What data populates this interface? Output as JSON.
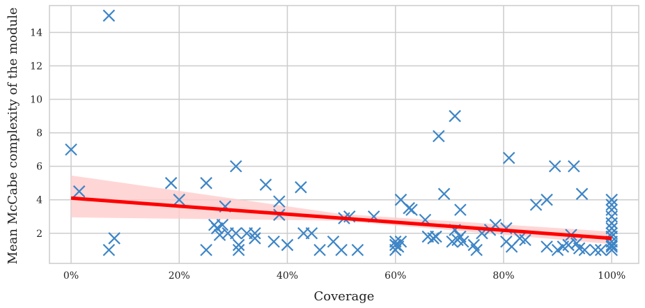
{
  "chart_data": {
    "type": "scatter",
    "xlabel": "Coverage",
    "ylabel": "Mean McCabe complexity of the module",
    "xlim": [
      -4,
      105
    ],
    "ylim": [
      0.2,
      15.6
    ],
    "x_ticks": [
      0,
      20,
      40,
      60,
      80,
      100
    ],
    "x_tick_labels": [
      "0%",
      "20%",
      "40%",
      "60%",
      "80%",
      "100%"
    ],
    "y_ticks": [
      2,
      4,
      6,
      8,
      10,
      12,
      14
    ],
    "y_tick_labels": [
      "2",
      "4",
      "6",
      "8",
      "10",
      "12",
      "14"
    ],
    "grid": true,
    "colors": {
      "points": "#3d85c6",
      "regression": "#ff0000",
      "confidence_band": "#ffcccc",
      "grid": "#cccccc",
      "frame": "#cccccc"
    },
    "marker": "x",
    "regression": {
      "x": [
        0,
        100
      ],
      "y": [
        4.1,
        1.7
      ]
    },
    "confidence_band": {
      "x": [
        0,
        50,
        100
      ],
      "lower": [
        2.95,
        2.75,
        1.35
      ],
      "upper": [
        5.45,
        3.15,
        2.1
      ]
    },
    "points": [
      {
        "x": 0,
        "y": 7
      },
      {
        "x": 1.5,
        "y": 4.5
      },
      {
        "x": 7,
        "y": 15
      },
      {
        "x": 7,
        "y": 1
      },
      {
        "x": 8,
        "y": 1.7
      },
      {
        "x": 18.5,
        "y": 5
      },
      {
        "x": 20,
        "y": 4
      },
      {
        "x": 25,
        "y": 5
      },
      {
        "x": 25,
        "y": 1
      },
      {
        "x": 26.5,
        "y": 2.5
      },
      {
        "x": 27,
        "y": 2.3
      },
      {
        "x": 27.5,
        "y": 1.9
      },
      {
        "x": 28,
        "y": 2.5
      },
      {
        "x": 28.5,
        "y": 3.6
      },
      {
        "x": 29,
        "y": 2
      },
      {
        "x": 30.5,
        "y": 6
      },
      {
        "x": 30.5,
        "y": 2
      },
      {
        "x": 31,
        "y": 1.3
      },
      {
        "x": 31,
        "y": 1
      },
      {
        "x": 32.5,
        "y": 2
      },
      {
        "x": 34,
        "y": 1.7
      },
      {
        "x": 34,
        "y": 2
      },
      {
        "x": 36,
        "y": 4.9
      },
      {
        "x": 37.5,
        "y": 1.5
      },
      {
        "x": 38.5,
        "y": 3.9
      },
      {
        "x": 38.5,
        "y": 3.1
      },
      {
        "x": 40,
        "y": 1.3
      },
      {
        "x": 42.5,
        "y": 4.75
      },
      {
        "x": 43,
        "y": 2
      },
      {
        "x": 44.5,
        "y": 2
      },
      {
        "x": 46,
        "y": 1
      },
      {
        "x": 48.5,
        "y": 1.5
      },
      {
        "x": 50,
        "y": 1
      },
      {
        "x": 50.5,
        "y": 2.9
      },
      {
        "x": 51.5,
        "y": 3
      },
      {
        "x": 53,
        "y": 1
      },
      {
        "x": 56,
        "y": 3
      },
      {
        "x": 60,
        "y": 1.5
      },
      {
        "x": 60,
        "y": 1.3
      },
      {
        "x": 60,
        "y": 1
      },
      {
        "x": 60.5,
        "y": 1.2
      },
      {
        "x": 61,
        "y": 4
      },
      {
        "x": 61,
        "y": 1.5
      },
      {
        "x": 62.5,
        "y": 3.5
      },
      {
        "x": 63,
        "y": 3.4
      },
      {
        "x": 65.5,
        "y": 2.8
      },
      {
        "x": 66,
        "y": 1.8
      },
      {
        "x": 67,
        "y": 1.7
      },
      {
        "x": 67.5,
        "y": 1.8
      },
      {
        "x": 68,
        "y": 7.8
      },
      {
        "x": 69,
        "y": 4.35
      },
      {
        "x": 70.5,
        "y": 1.5
      },
      {
        "x": 71,
        "y": 9
      },
      {
        "x": 71,
        "y": 2.2
      },
      {
        "x": 71.5,
        "y": 1.6
      },
      {
        "x": 72,
        "y": 3.4
      },
      {
        "x": 72,
        "y": 1.8
      },
      {
        "x": 72.5,
        "y": 1.5
      },
      {
        "x": 74.5,
        "y": 1.3
      },
      {
        "x": 75,
        "y": 1
      },
      {
        "x": 76,
        "y": 2
      },
      {
        "x": 77.5,
        "y": 2.2
      },
      {
        "x": 78.5,
        "y": 2.5
      },
      {
        "x": 80.5,
        "y": 2.3
      },
      {
        "x": 80.5,
        "y": 1.5
      },
      {
        "x": 81,
        "y": 6.5
      },
      {
        "x": 81.5,
        "y": 1.2
      },
      {
        "x": 83,
        "y": 1.7
      },
      {
        "x": 84,
        "y": 1.6
      },
      {
        "x": 86,
        "y": 3.7
      },
      {
        "x": 88,
        "y": 4
      },
      {
        "x": 88,
        "y": 1.2
      },
      {
        "x": 89.5,
        "y": 6
      },
      {
        "x": 90,
        "y": 1
      },
      {
        "x": 91,
        "y": 1.2
      },
      {
        "x": 92,
        "y": 1.3
      },
      {
        "x": 92.5,
        "y": 1.9
      },
      {
        "x": 93,
        "y": 6
      },
      {
        "x": 93.5,
        "y": 1.4
      },
      {
        "x": 94,
        "y": 1.1
      },
      {
        "x": 94.5,
        "y": 4.35
      },
      {
        "x": 95,
        "y": 1
      },
      {
        "x": 97,
        "y": 1
      },
      {
        "x": 98,
        "y": 1
      },
      {
        "x": 100,
        "y": 4
      },
      {
        "x": 100,
        "y": 3.7
      },
      {
        "x": 100,
        "y": 3.4
      },
      {
        "x": 100,
        "y": 3
      },
      {
        "x": 100,
        "y": 2.6
      },
      {
        "x": 100,
        "y": 2.3
      },
      {
        "x": 100,
        "y": 2
      },
      {
        "x": 100,
        "y": 1.8
      },
      {
        "x": 100,
        "y": 1.5
      },
      {
        "x": 100,
        "y": 1.3
      },
      {
        "x": 100,
        "y": 1.2
      },
      {
        "x": 100,
        "y": 1
      }
    ]
  }
}
